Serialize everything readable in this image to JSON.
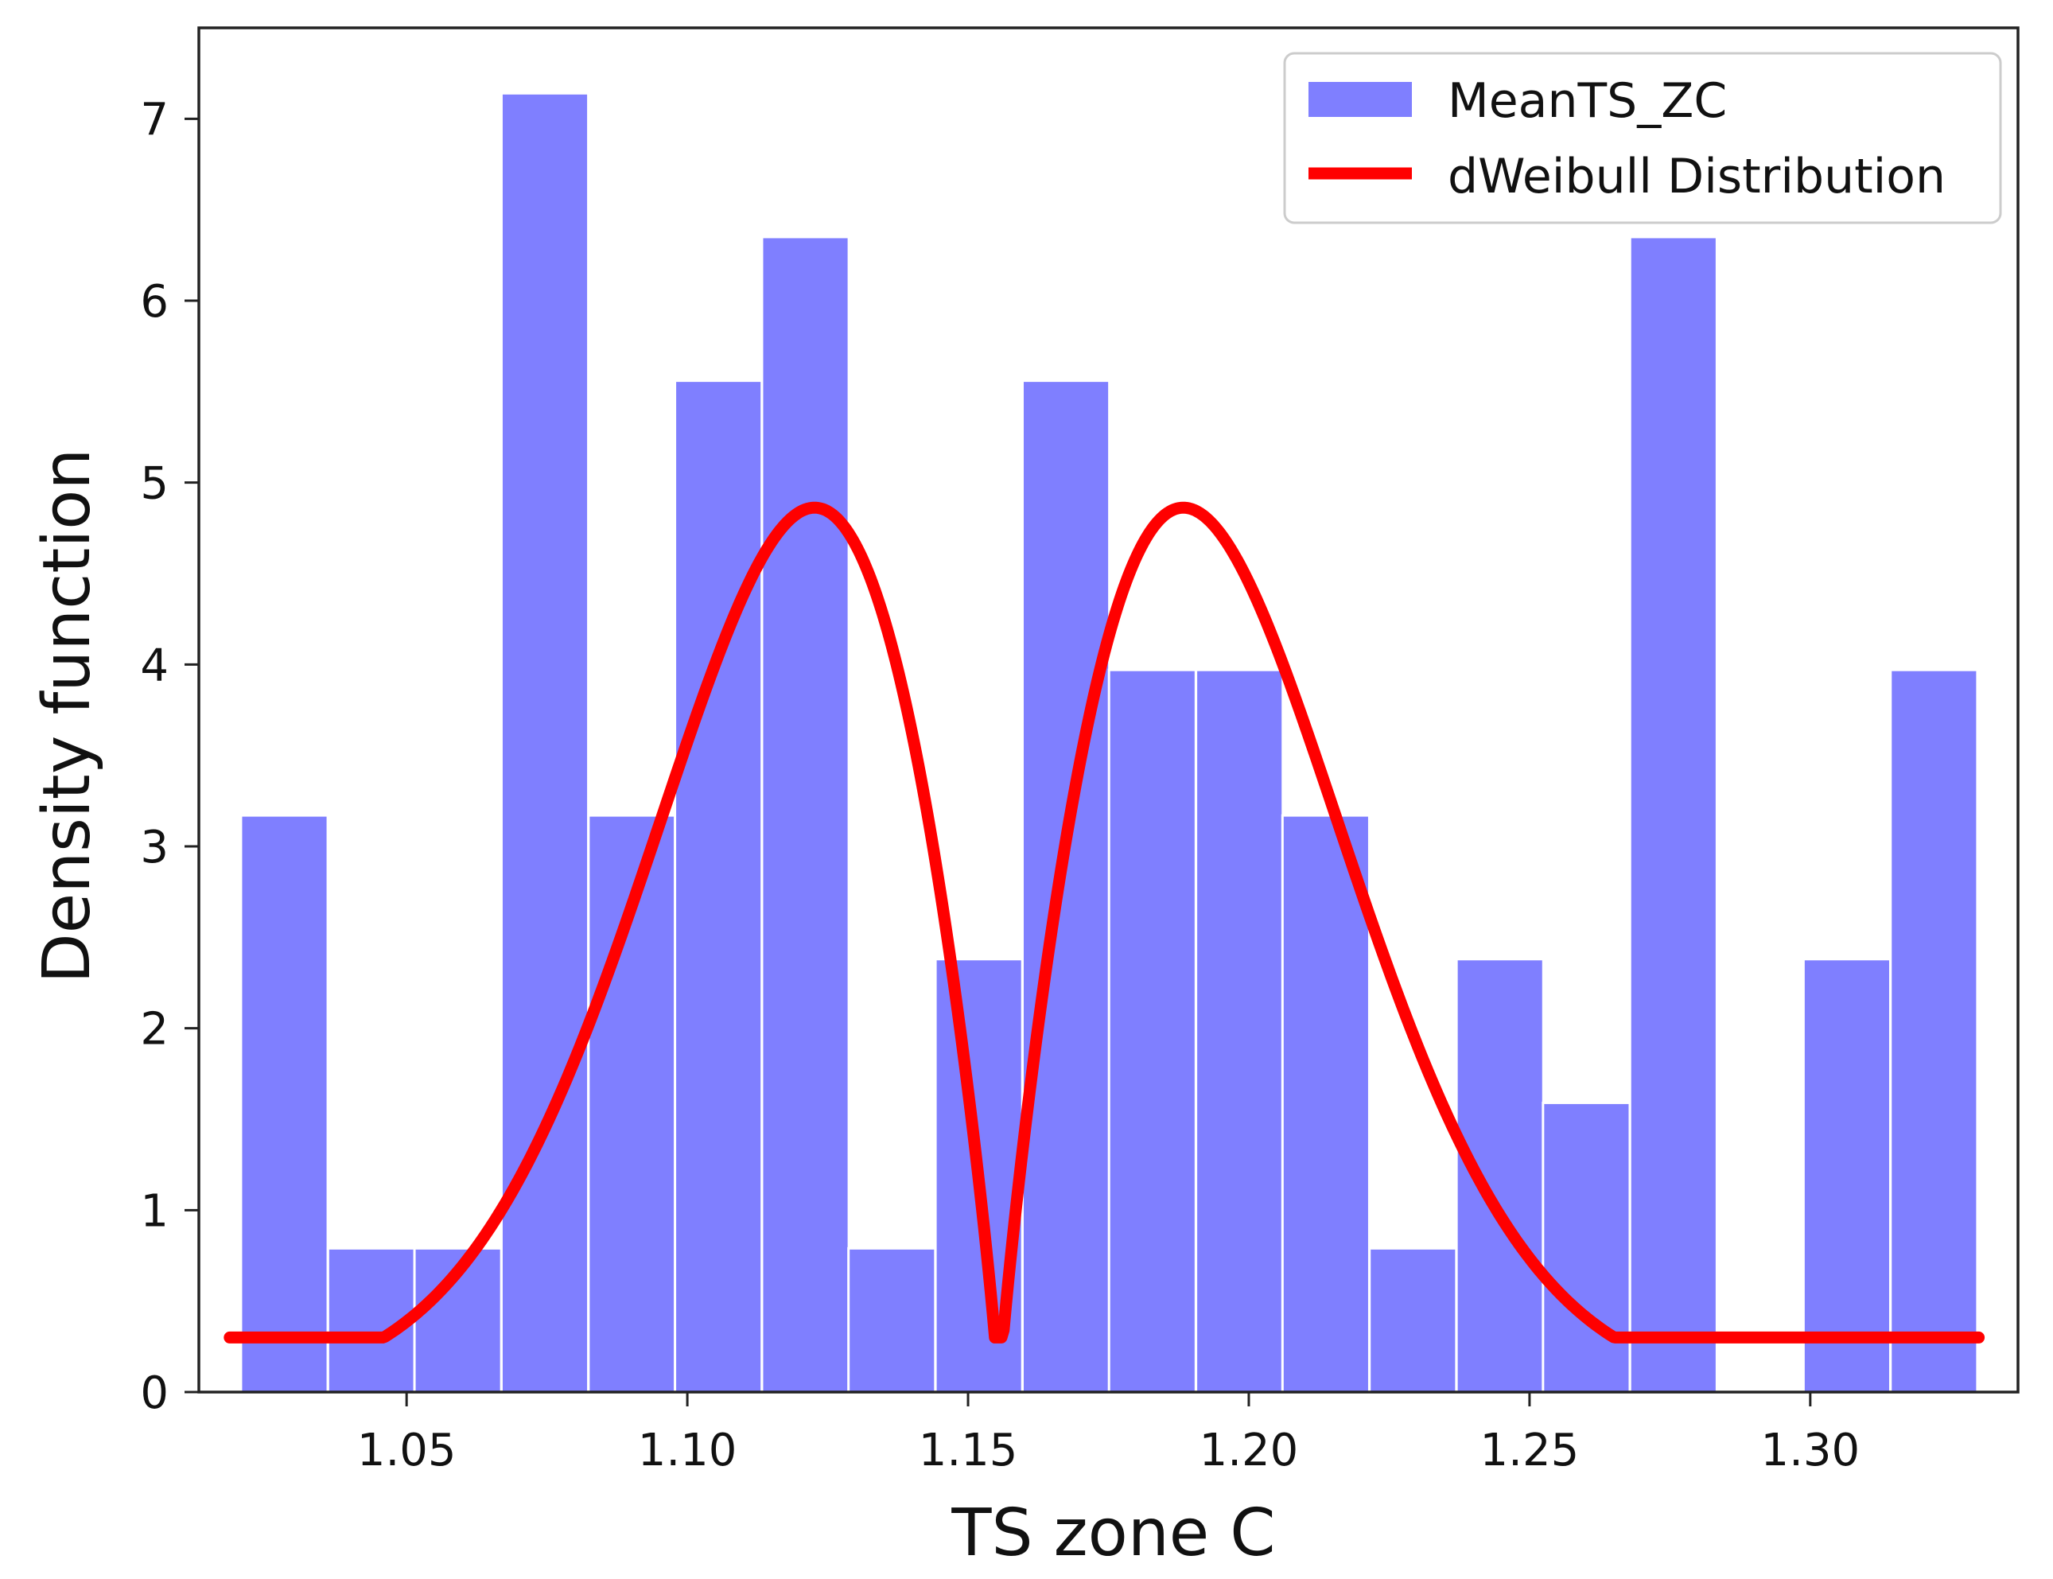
{
  "chart_data": {
    "type": "bar",
    "title": "",
    "xlabel": "TS zone C",
    "ylabel": "Density function",
    "xlim": [
      1.013,
      1.337
    ],
    "ylim": [
      0,
      7.5
    ],
    "x_ticks": [
      1.05,
      1.1,
      1.15,
      1.2,
      1.25,
      1.3
    ],
    "x_tick_labels": [
      "1.05",
      "1.10",
      "1.15",
      "1.20",
      "1.25",
      "1.30"
    ],
    "y_ticks": [
      0,
      1,
      2,
      3,
      4,
      5,
      6,
      7
    ],
    "y_tick_labels": [
      "0",
      "1",
      "2",
      "3",
      "4",
      "5",
      "6",
      "7"
    ],
    "bin_width": 0.01546,
    "histogram": {
      "name": "MeanTS_ZC",
      "color": "#7f7fff",
      "bins": [
        {
          "left": 1.0205,
          "value": 3.17
        },
        {
          "left": 1.036,
          "value": 0.79
        },
        {
          "left": 1.0514,
          "value": 0.79
        },
        {
          "left": 1.0669,
          "value": 7.14
        },
        {
          "left": 1.0824,
          "value": 3.17
        },
        {
          "left": 1.0978,
          "value": 5.56
        },
        {
          "left": 1.1133,
          "value": 6.35
        },
        {
          "left": 1.1287,
          "value": 0.79
        },
        {
          "left": 1.1442,
          "value": 2.38
        },
        {
          "left": 1.1597,
          "value": 5.56
        },
        {
          "left": 1.1751,
          "value": 3.97
        },
        {
          "left": 1.1906,
          "value": 3.97
        },
        {
          "left": 1.206,
          "value": 3.17
        },
        {
          "left": 1.2215,
          "value": 0.79
        },
        {
          "left": 1.237,
          "value": 2.38
        },
        {
          "left": 1.2524,
          "value": 1.59
        },
        {
          "left": 1.2679,
          "value": 6.35
        },
        {
          "left": 1.2833,
          "value": 0.0
        },
        {
          "left": 1.2988,
          "value": 2.38
        },
        {
          "left": 1.3143,
          "value": 3.97
        }
      ]
    },
    "fit": {
      "name": "dWeibull Distribution",
      "color": "#ff0000",
      "x_start": 1.0185,
      "x_end": 1.33,
      "location": 1.1555,
      "peak_value": 4.65,
      "peak_offset": 0.041,
      "shape": 1.85,
      "scale": 0.05,
      "floor_value": 0.3
    },
    "legend": {
      "position": "top-right",
      "entries": [
        {
          "label": "MeanTS_ZC",
          "kind": "patch",
          "color": "#7f7fff"
        },
        {
          "label": "dWeibull Distribution",
          "kind": "line",
          "color": "#ff0000"
        }
      ]
    },
    "grid": false
  }
}
